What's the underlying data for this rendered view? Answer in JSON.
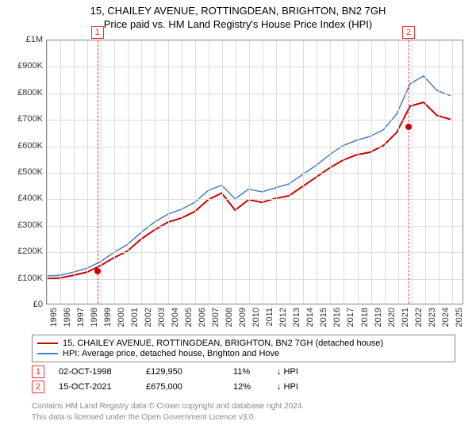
{
  "title": {
    "main": "15, CHAILEY AVENUE, ROTTINGDEAN, BRIGHTON, BN2 7GH",
    "sub": "Price paid vs. HM Land Registry's House Price Index (HPI)"
  },
  "chart": {
    "type": "line",
    "background_color": "#ffffff",
    "grid_color": "#dddddd",
    "border_color": "#888888",
    "xlim": [
      1995,
      2025.9
    ],
    "ylim": [
      0,
      1000000
    ],
    "y_ticks": [
      0,
      100000,
      200000,
      300000,
      400000,
      500000,
      600000,
      700000,
      800000,
      900000,
      1000000
    ],
    "y_tick_labels": [
      "£0",
      "£100K",
      "£200K",
      "£300K",
      "£400K",
      "£500K",
      "£600K",
      "£700K",
      "£800K",
      "£900K",
      "£1M"
    ],
    "x_ticks": [
      1995,
      1996,
      1997,
      1998,
      1999,
      2000,
      2001,
      2002,
      2003,
      2004,
      2005,
      2006,
      2007,
      2008,
      2009,
      2010,
      2011,
      2012,
      2013,
      2014,
      2015,
      2016,
      2017,
      2018,
      2019,
      2020,
      2021,
      2022,
      2023,
      2024,
      2025
    ],
    "label_fontsize": 11,
    "series": [
      {
        "name": "price_paid",
        "color": "#cc0000",
        "line_width": 2,
        "x": [
          1995,
          1996,
          1997,
          1998,
          1999,
          2000,
          2001,
          2002,
          2003,
          2004,
          2005,
          2006,
          2007,
          2008,
          2009,
          2010,
          2011,
          2012,
          2013,
          2014,
          2015,
          2016,
          2017,
          2018,
          2019,
          2020,
          2021,
          2022,
          2023,
          2024,
          2025
        ],
        "y": [
          95000,
          98000,
          108000,
          120000,
          145000,
          175000,
          200000,
          245000,
          280000,
          310000,
          325000,
          350000,
          395000,
          420000,
          355000,
          395000,
          385000,
          400000,
          410000,
          445000,
          480000,
          515000,
          545000,
          565000,
          575000,
          600000,
          650000,
          750000,
          765000,
          715000,
          700000
        ]
      },
      {
        "name": "hpi",
        "color": "#4a7ebb",
        "line_width": 1.5,
        "x": [
          1995,
          1996,
          1997,
          1998,
          1999,
          2000,
          2001,
          2002,
          2003,
          2004,
          2005,
          2006,
          2007,
          2008,
          2009,
          2010,
          2011,
          2012,
          2013,
          2014,
          2015,
          2016,
          2017,
          2018,
          2019,
          2020,
          2021,
          2022,
          2023,
          2024,
          2025
        ],
        "y": [
          105000,
          108000,
          120000,
          135000,
          160000,
          195000,
          225000,
          270000,
          310000,
          340000,
          358000,
          385000,
          430000,
          450000,
          398000,
          435000,
          425000,
          440000,
          455000,
          490000,
          525000,
          565000,
          600000,
          620000,
          635000,
          660000,
          720000,
          835000,
          865000,
          810000,
          790000
        ]
      }
    ],
    "markers": [
      {
        "id": "1",
        "x": 1998.75,
        "y": 129950,
        "color": "#cc0000"
      },
      {
        "id": "2",
        "x": 2021.79,
        "y": 675000,
        "color": "#cc0000"
      }
    ],
    "marker_line_color": "#e33333",
    "marker_box_border": "#e33333"
  },
  "legend": {
    "items": [
      {
        "color": "#cc0000",
        "label": "15, CHAILEY AVENUE, ROTTINGDEAN, BRIGHTON, BN2 7GH (detached house)"
      },
      {
        "color": "#4a7ebb",
        "label": "HPI: Average price, detached house, Brighton and Hove"
      }
    ]
  },
  "transactions": [
    {
      "id": "1",
      "date": "02-OCT-1998",
      "price": "£129,950",
      "pct": "11%",
      "arrow": "↓",
      "suffix": "HPI"
    },
    {
      "id": "2",
      "date": "15-OCT-2021",
      "price": "£675,000",
      "pct": "12%",
      "arrow": "↓",
      "suffix": "HPI"
    }
  ],
  "footer": {
    "line1": "Contains HM Land Registry data © Crown copyright and database right 2024.",
    "line2": "This data is licensed under the Open Government Licence v3.0."
  }
}
